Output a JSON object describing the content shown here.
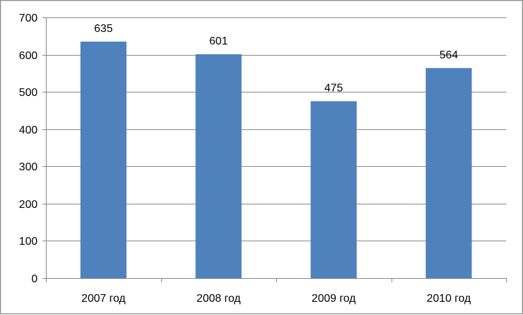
{
  "chart_data": {
    "type": "bar",
    "title": "",
    "xlabel": "",
    "ylabel": "",
    "categories": [
      "2007 год",
      "2008 год",
      "2009 год",
      "2010 год"
    ],
    "values": [
      635,
      601,
      475,
      564
    ],
    "data_labels": [
      "635",
      "601",
      "475",
      "564"
    ],
    "ylim": [
      0,
      700
    ],
    "yticks": [
      "0",
      "100",
      "200",
      "300",
      "400",
      "500",
      "600",
      "700"
    ],
    "grid": true,
    "legend": "none",
    "bar_color": "#4F81BD",
    "grid_color": "#858585"
  }
}
